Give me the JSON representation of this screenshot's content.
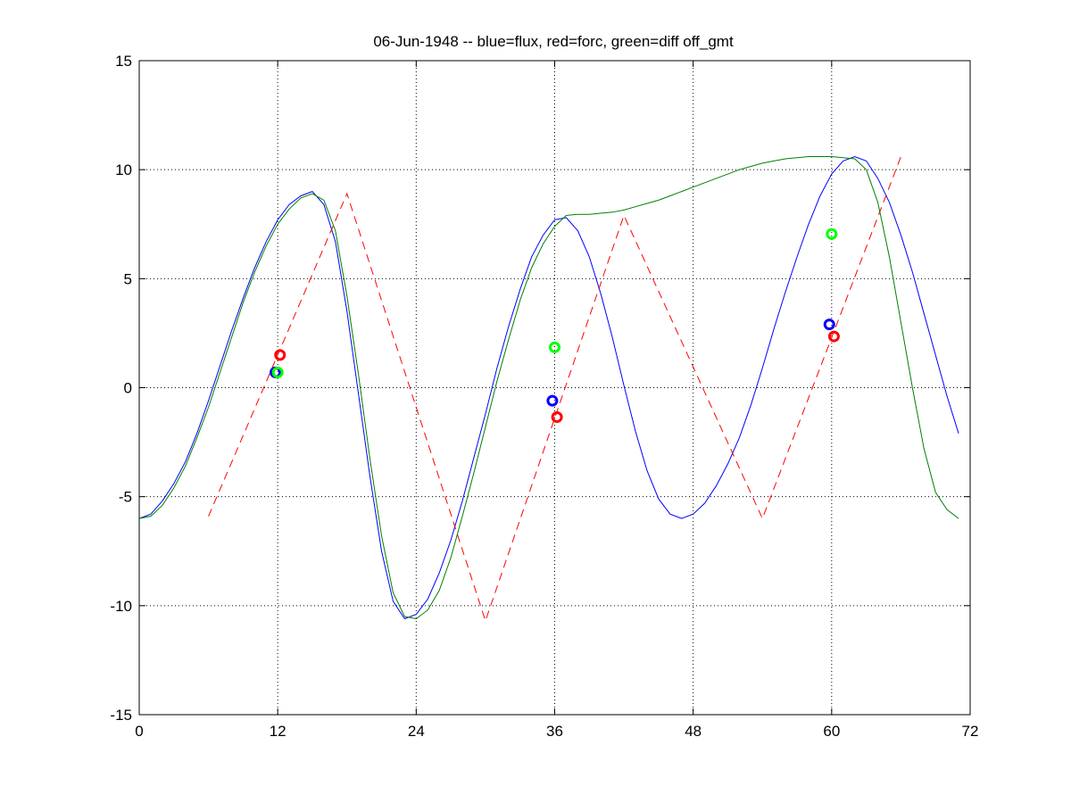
{
  "chart_data": {
    "type": "line",
    "title": "06-Jun-1948 -- blue=flux, red=forc, green=diff off_gmt",
    "xlabel": "",
    "ylabel": "",
    "xlim": [
      0,
      72
    ],
    "ylim": [
      -15,
      15
    ],
    "xticks": [
      0,
      12,
      24,
      36,
      48,
      60,
      72
    ],
    "yticks": [
      -15,
      -10,
      -5,
      0,
      5,
      10,
      15
    ],
    "grid": true,
    "series": [
      {
        "color": "#0000ff",
        "style": "solid",
        "x": [
          0,
          1,
          2,
          3,
          4,
          5,
          6,
          7,
          8,
          9,
          10,
          11,
          12,
          13,
          14,
          15,
          16,
          17,
          18,
          19,
          20,
          21,
          22,
          23,
          24,
          25,
          26,
          27,
          28,
          29,
          30,
          31,
          32,
          33,
          34,
          35,
          36,
          37,
          38,
          39,
          40,
          41,
          42,
          43,
          44,
          45,
          46,
          47,
          48,
          49,
          50,
          51,
          52,
          53,
          54,
          55,
          56,
          57,
          58,
          59,
          60,
          61,
          62,
          63,
          64,
          65,
          66,
          67,
          68,
          69,
          70,
          71
        ],
        "y": [
          -6,
          -5.8,
          -5.2,
          -4.4,
          -3.4,
          -2.1,
          -0.6,
          1.0,
          2.6,
          4.1,
          5.5,
          6.7,
          7.7,
          8.4,
          8.8,
          9.0,
          8.4,
          6.7,
          3.5,
          -0.3,
          -4.1,
          -7.5,
          -9.8,
          -10.6,
          -10.4,
          -9.7,
          -8.5,
          -7.0,
          -5.2,
          -3.2,
          -1.2,
          0.9,
          2.8,
          4.5,
          6.0,
          7.0,
          7.7,
          7.8,
          7.2,
          6.0,
          4.3,
          2.3,
          0.1,
          -2.0,
          -3.8,
          -5.1,
          -5.8,
          -6.0,
          -5.8,
          -5.3,
          -4.5,
          -3.5,
          -2.3,
          -0.8,
          0.9,
          2.7,
          4.4,
          6.0,
          7.5,
          8.8,
          9.8,
          10.4,
          10.6,
          10.4,
          9.6,
          8.5,
          7.0,
          5.3,
          3.4,
          1.5,
          -0.4,
          -2.1
        ]
      },
      {
        "color": "#ff0000",
        "style": "dashed",
        "x": [
          6,
          18,
          30,
          42,
          54,
          66
        ],
        "y": [
          -5.9,
          8.9,
          -10.7,
          7.9,
          -6.0,
          10.6
        ]
      },
      {
        "color": "#008000",
        "style": "solid",
        "x": [
          0,
          1,
          2,
          3,
          4,
          5,
          6,
          7,
          8,
          9,
          10,
          11,
          12,
          13,
          14,
          15,
          16,
          17,
          18,
          19,
          20,
          21,
          22,
          23,
          24,
          25,
          26,
          27,
          28,
          29,
          30,
          31,
          32,
          33,
          34,
          35,
          36,
          37,
          38,
          39,
          40,
          41,
          42,
          43,
          44,
          45,
          46,
          47,
          48,
          49,
          50,
          51,
          52,
          53,
          54,
          55,
          56,
          57,
          58,
          59,
          60,
          61,
          62,
          63,
          64,
          65,
          66,
          67,
          68,
          69,
          70,
          71
        ],
        "y": [
          -6,
          -5.9,
          -5.4,
          -4.6,
          -3.6,
          -2.3,
          -0.9,
          0.7,
          2.3,
          3.9,
          5.3,
          6.5,
          7.5,
          8.2,
          8.7,
          8.9,
          8.6,
          7.2,
          4.2,
          0.6,
          -3.3,
          -6.8,
          -9.4,
          -10.5,
          -10.6,
          -10.2,
          -9.3,
          -7.8,
          -5.9,
          -3.9,
          -1.8,
          0.3,
          2.2,
          4.0,
          5.5,
          6.6,
          7.4,
          7.9,
          7.95,
          7.95,
          8.0,
          8.05,
          8.15,
          8.3,
          8.45,
          8.6,
          8.8,
          9.0,
          9.2,
          9.4,
          9.6,
          9.8,
          10.0,
          10.15,
          10.3,
          10.4,
          10.5,
          10.55,
          10.6,
          10.6,
          10.6,
          10.55,
          10.5,
          10.0,
          8.5,
          6.0,
          3.0,
          0.0,
          -2.8,
          -4.8,
          -5.6,
          -6.0
        ]
      }
    ],
    "markers": [
      {
        "x": 11.8,
        "y": 0.7,
        "color": "#0000ff"
      },
      {
        "x": 12.2,
        "y": 1.5,
        "color": "#ff0000"
      },
      {
        "x": 12.0,
        "y": 0.7,
        "color": "#00ff00"
      },
      {
        "x": 35.8,
        "y": -0.6,
        "color": "#0000ff"
      },
      {
        "x": 36.2,
        "y": -1.35,
        "color": "#ff0000"
      },
      {
        "x": 36.0,
        "y": 1.85,
        "color": "#00ff00"
      },
      {
        "x": 59.8,
        "y": 2.9,
        "color": "#0000ff"
      },
      {
        "x": 60.2,
        "y": 2.35,
        "color": "#ff0000"
      },
      {
        "x": 60.0,
        "y": 7.05,
        "color": "#00ff00"
      }
    ]
  }
}
